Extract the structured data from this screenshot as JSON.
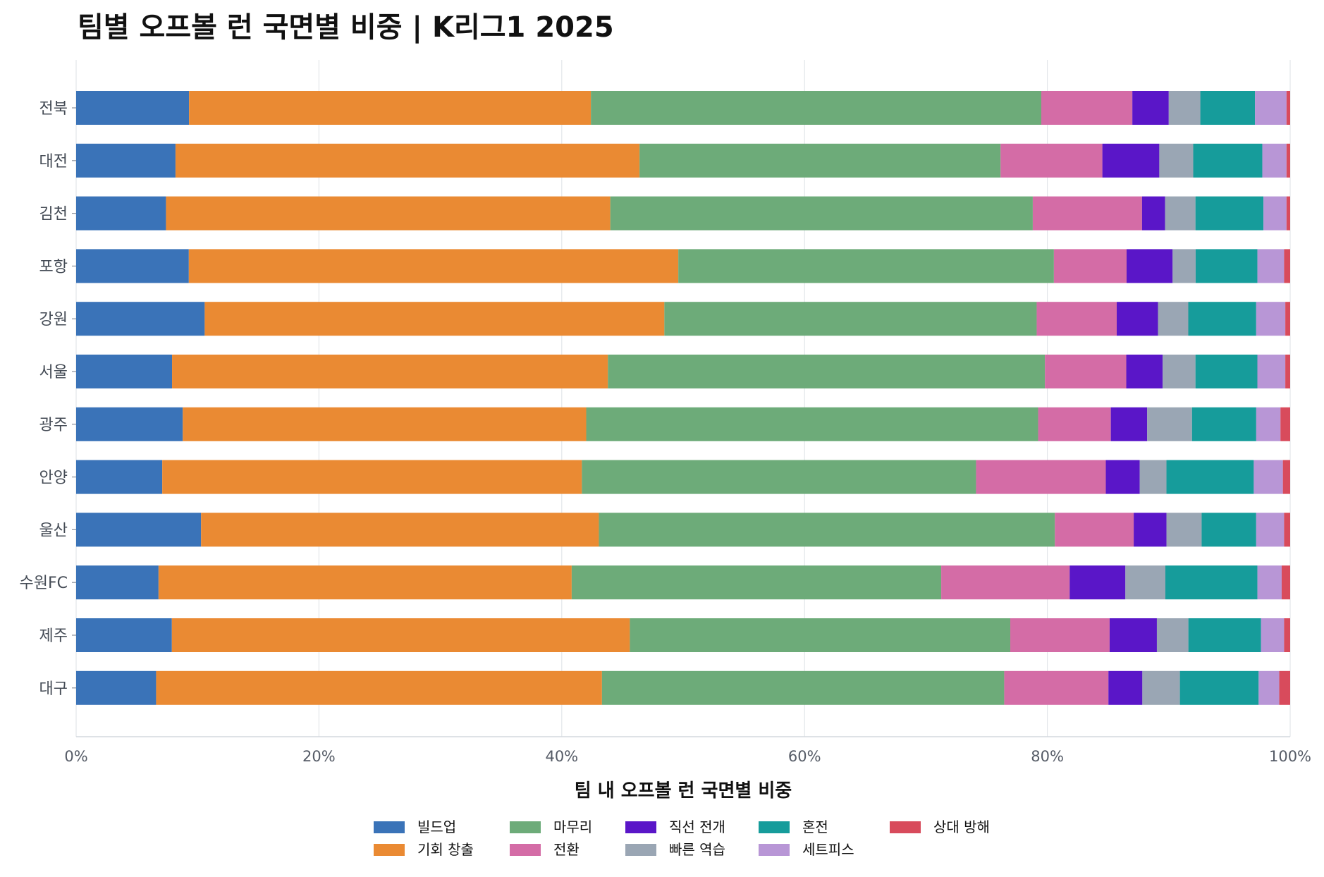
{
  "chart_data": {
    "type": "bar",
    "orientation": "horizontal",
    "stacked": true,
    "title": "팀별 오프볼 런 국면별 비중 | K리그1 2025",
    "xlabel": "팀 내 오프볼 런 국면별 비중",
    "ylabel": "",
    "xlim": [
      0,
      100
    ],
    "x_unit": "%",
    "x_ticks": [
      "0%",
      "20%",
      "40%",
      "60%",
      "80%",
      "100%"
    ],
    "grid": "vertical",
    "legend_position": "bottom",
    "categories": [
      "전북",
      "대전",
      "김천",
      "포항",
      "강원",
      "서울",
      "광주",
      "안양",
      "울산",
      "수원FC",
      "제주",
      "대구"
    ],
    "series": [
      {
        "name": "빌드업",
        "color": "#3a73b8",
        "values": [
          9.3,
          8.2,
          7.4,
          9.3,
          10.6,
          7.9,
          8.8,
          7.1,
          10.3,
          6.8,
          7.9,
          6.6
        ]
      },
      {
        "name": "기회 창출",
        "color": "#ea8a33",
        "values": [
          33.1,
          38.3,
          36.6,
          40.4,
          37.9,
          35.9,
          33.3,
          34.6,
          32.8,
          34.1,
          37.8,
          36.8
        ]
      },
      {
        "name": "마무리",
        "color": "#6dab79",
        "values": [
          37.1,
          29.8,
          34.8,
          31.0,
          30.7,
          36.0,
          37.3,
          32.5,
          37.6,
          30.5,
          31.4,
          33.2
        ]
      },
      {
        "name": "전환",
        "color": "#d46ca6",
        "values": [
          7.5,
          8.4,
          9.0,
          6.0,
          6.6,
          6.7,
          6.0,
          10.7,
          6.5,
          10.6,
          8.2,
          8.6
        ]
      },
      {
        "name": "직선 전개",
        "color": "#5a16c8",
        "values": [
          3.0,
          4.7,
          1.9,
          3.8,
          3.4,
          3.0,
          3.0,
          2.8,
          2.7,
          4.6,
          3.9,
          2.8
        ]
      },
      {
        "name": "빠른 역습",
        "color": "#9aa6b4",
        "values": [
          2.6,
          2.8,
          2.5,
          1.9,
          2.5,
          2.7,
          3.7,
          2.2,
          2.9,
          3.3,
          2.6,
          3.1
        ]
      },
      {
        "name": "혼전",
        "color": "#169c9b",
        "values": [
          4.5,
          5.7,
          5.6,
          5.1,
          5.6,
          5.1,
          5.3,
          7.2,
          4.5,
          7.6,
          6.0,
          6.5
        ]
      },
      {
        "name": "세트피스",
        "color": "#b896d6",
        "values": [
          2.6,
          2.0,
          1.9,
          2.2,
          2.4,
          2.3,
          2.0,
          2.4,
          2.3,
          2.0,
          1.9,
          1.7
        ]
      },
      {
        "name": "상대 방해",
        "color": "#d84b5c",
        "values": [
          0.3,
          0.3,
          0.3,
          0.5,
          0.4,
          0.4,
          0.8,
          0.6,
          0.5,
          0.7,
          0.5,
          0.9
        ]
      }
    ]
  }
}
